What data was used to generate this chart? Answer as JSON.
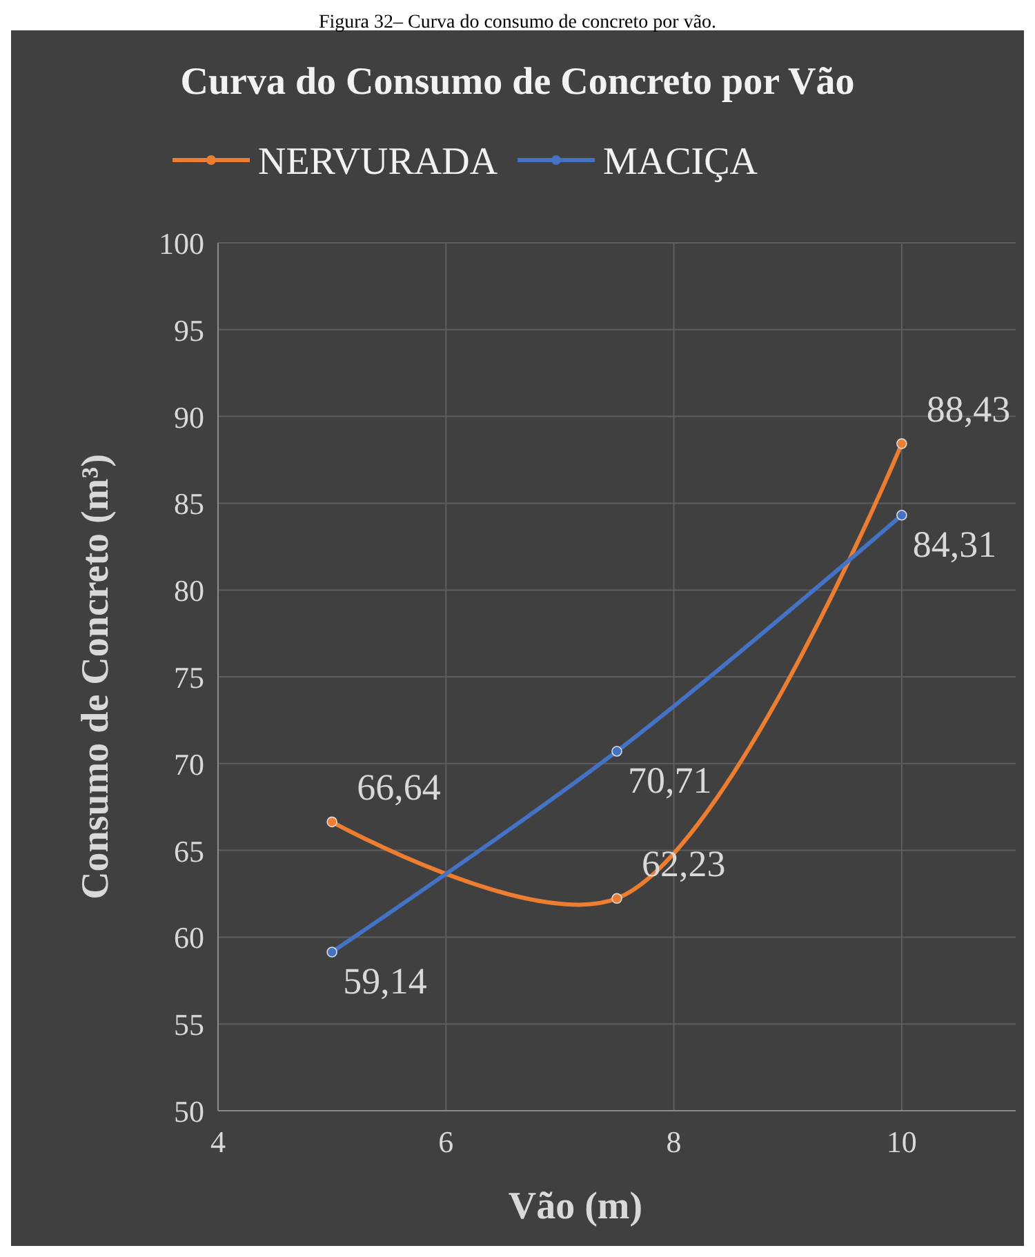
{
  "chart_data": {
    "type": "line",
    "title": "Curva do Consumo de Concreto por Vão",
    "xlabel": "Vão (m)",
    "ylabel": "Consumo de Concreto (m³)",
    "annotations": [
      "Figura 32– Curva do consumo de concreto por vão."
    ],
    "series": [
      {
        "name": "NERVURADA",
        "color": "#ed7d31",
        "x": [
          5,
          7.5,
          10
        ],
        "values": [
          66.64,
          62.23,
          88.43
        ],
        "value_labels": [
          "66,64",
          "62,23",
          "88,43"
        ]
      },
      {
        "name": "MACIÇA",
        "color": "#4472c4",
        "x": [
          5,
          7.5,
          10
        ],
        "values": [
          59.14,
          70.71,
          84.31
        ],
        "value_labels": [
          "59,14",
          "70,71",
          "84,31"
        ]
      }
    ],
    "xlim": [
      4,
      11
    ],
    "xticks": [
      4,
      6,
      8,
      10
    ],
    "ylim": [
      50,
      100
    ],
    "yticks": [
      50,
      55,
      60,
      65,
      70,
      75,
      80,
      85,
      90,
      95,
      100
    ],
    "grid": true,
    "legend": "top",
    "marker": "circle",
    "line_style": "solid"
  }
}
